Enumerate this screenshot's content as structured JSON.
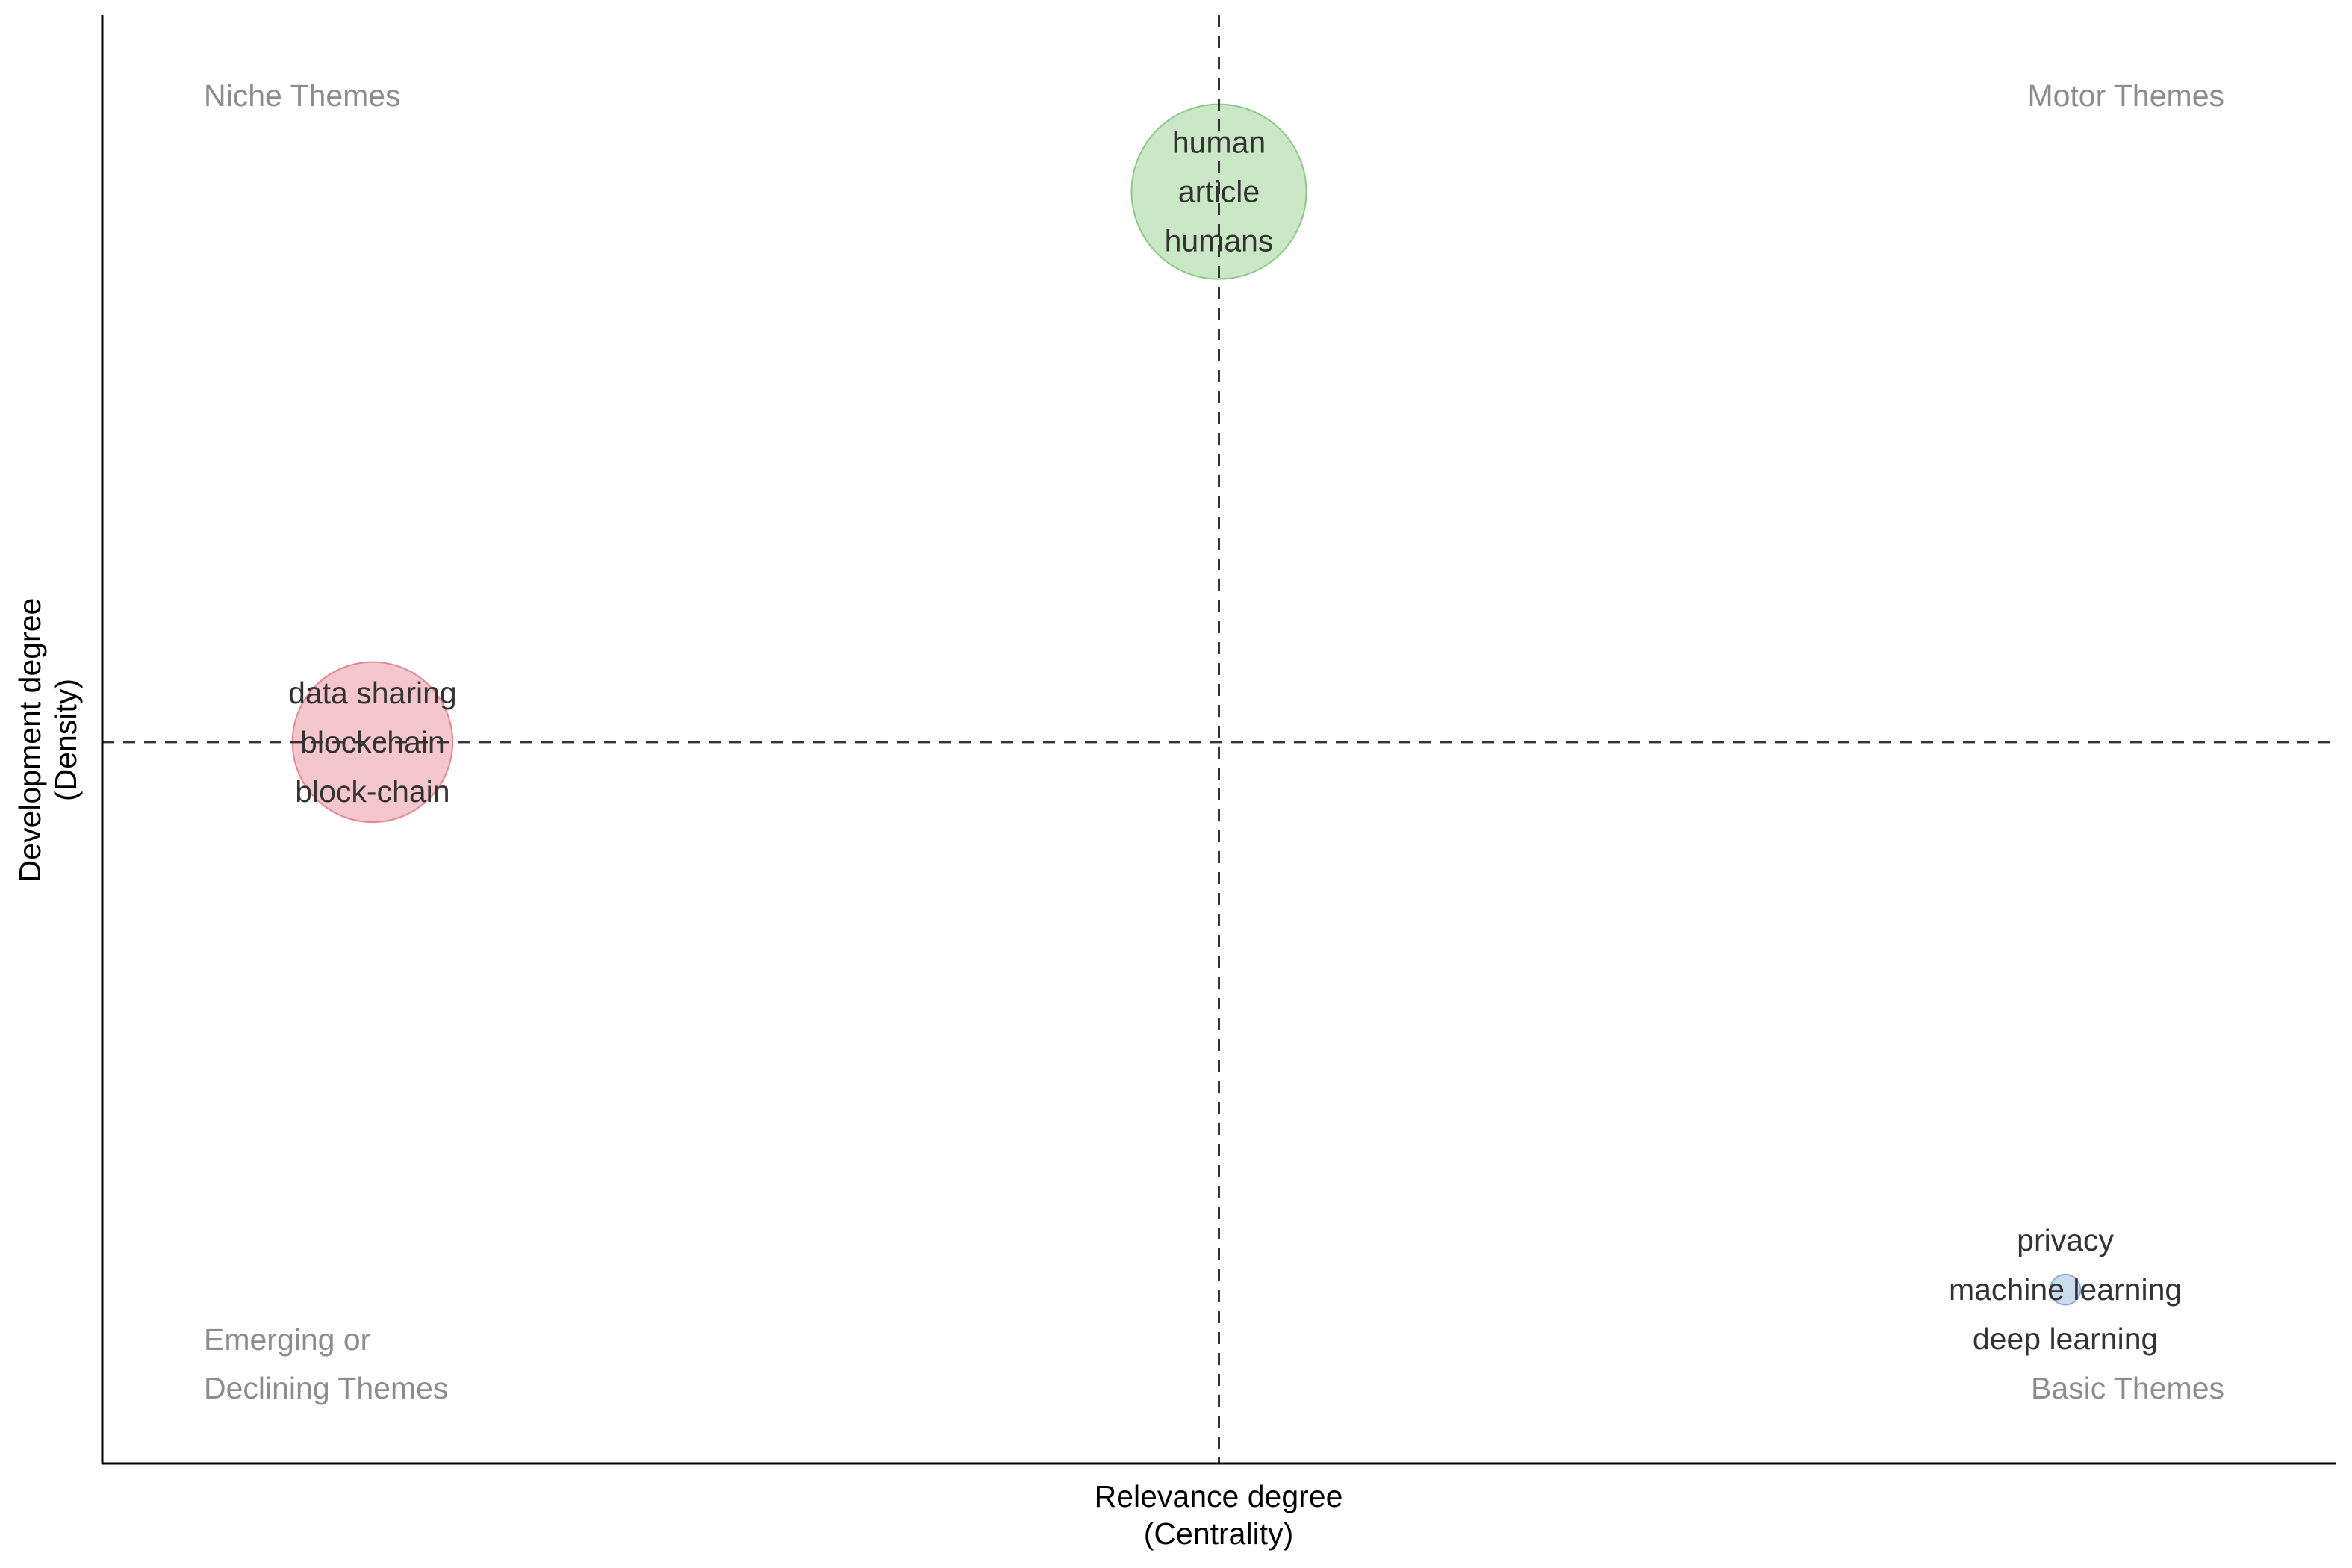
{
  "chart_data": {
    "type": "scatter",
    "subtype": "thematic-map-bubble",
    "title": "",
    "xlabel": [
      "Relevance degree",
      "(Centrality)"
    ],
    "ylabel": [
      "Development degree",
      "(Density)"
    ],
    "xlim": [
      0,
      1
    ],
    "ylim": [
      0,
      1
    ],
    "grid": false,
    "reference_lines": {
      "x": 0.5,
      "y": 0.498
    },
    "quadrant_labels": {
      "top_left": [
        "Niche Themes"
      ],
      "top_right": [
        "Motor Themes"
      ],
      "bottom_left": [
        "Emerging or",
        "Declining Themes"
      ],
      "bottom_right": [
        "Basic Themes"
      ]
    },
    "clusters": [
      {
        "name": "human",
        "centrality": 0.5,
        "density": 0.878,
        "size": 100,
        "color": "#a8d8a0",
        "stroke": "#8cc887",
        "labels": [
          "human",
          "article",
          "humans"
        ]
      },
      {
        "name": "data sharing",
        "centrality": 0.121,
        "density": 0.498,
        "size": 84,
        "color": "#f0a0ab",
        "stroke": "#e38592",
        "labels": [
          "data sharing",
          "blockchain",
          "block-chain"
        ]
      },
      {
        "name": "privacy",
        "centrality": 0.879,
        "density": 0.12,
        "size": 3,
        "color": "#a9c3e3",
        "stroke": "#8aabd8",
        "labels": [
          "privacy",
          "machine learning",
          "deep learning"
        ]
      }
    ]
  }
}
